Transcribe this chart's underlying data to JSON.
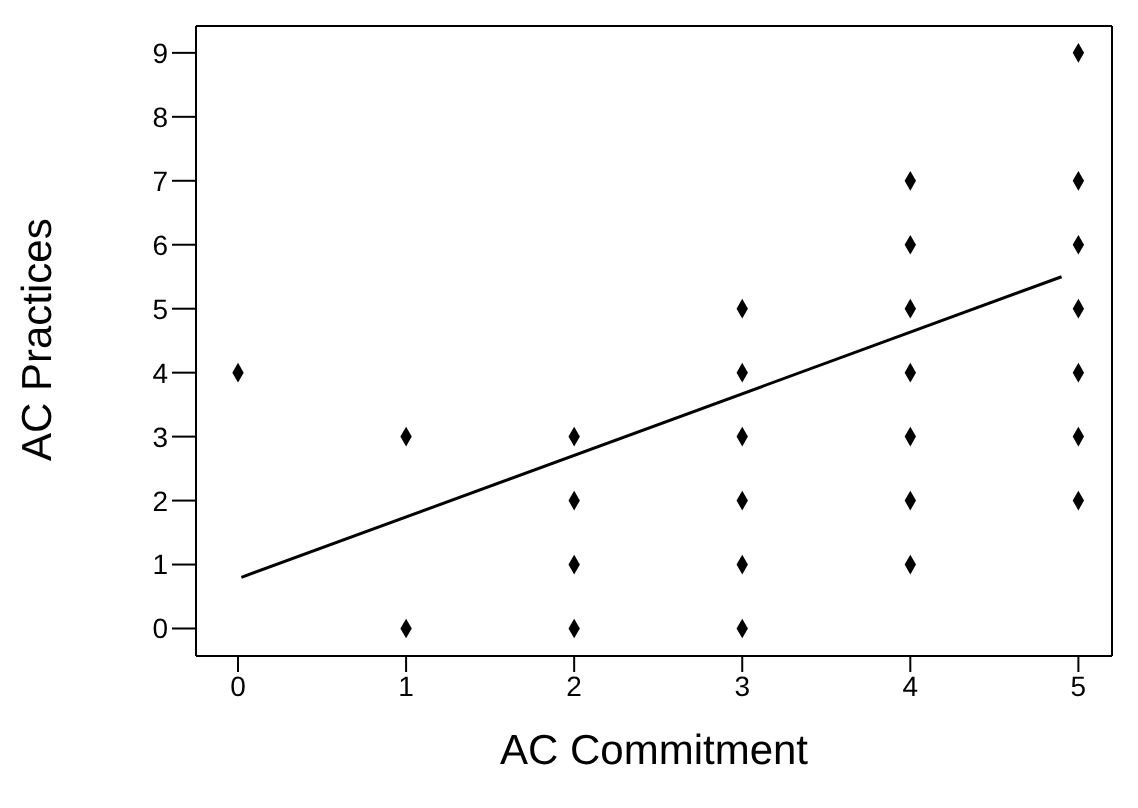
{
  "chart_data": {
    "type": "scatter",
    "xlabel": "AC Commitment",
    "ylabel": "AC Practices",
    "xlim": [
      -0.25,
      5.2
    ],
    "ylim": [
      -0.43,
      9.42
    ],
    "xticks": [
      0,
      1,
      2,
      3,
      4,
      5
    ],
    "yticks": [
      0,
      1,
      2,
      3,
      4,
      5,
      6,
      7,
      8,
      9
    ],
    "grid": false,
    "marker": "diamond",
    "series": [
      {
        "color": "#000000",
        "x": [
          0,
          1,
          1,
          2,
          2,
          2,
          2,
          3,
          3,
          3,
          3,
          3,
          3,
          4,
          4,
          4,
          4,
          4,
          4,
          4,
          5,
          5,
          5,
          5,
          5,
          5,
          5
        ],
        "values": [
          4,
          3,
          0,
          3,
          2,
          1,
          0,
          5,
          4,
          3,
          2,
          1,
          0,
          7,
          6,
          5,
          4,
          3,
          2,
          1,
          9,
          7,
          6,
          5,
          4,
          3,
          2
        ]
      },
      {
        "type": "line",
        "color": "#000000",
        "marker": "none",
        "x": [
          0.02,
          4.9
        ],
        "values": [
          0.8,
          5.5
        ]
      }
    ]
  }
}
